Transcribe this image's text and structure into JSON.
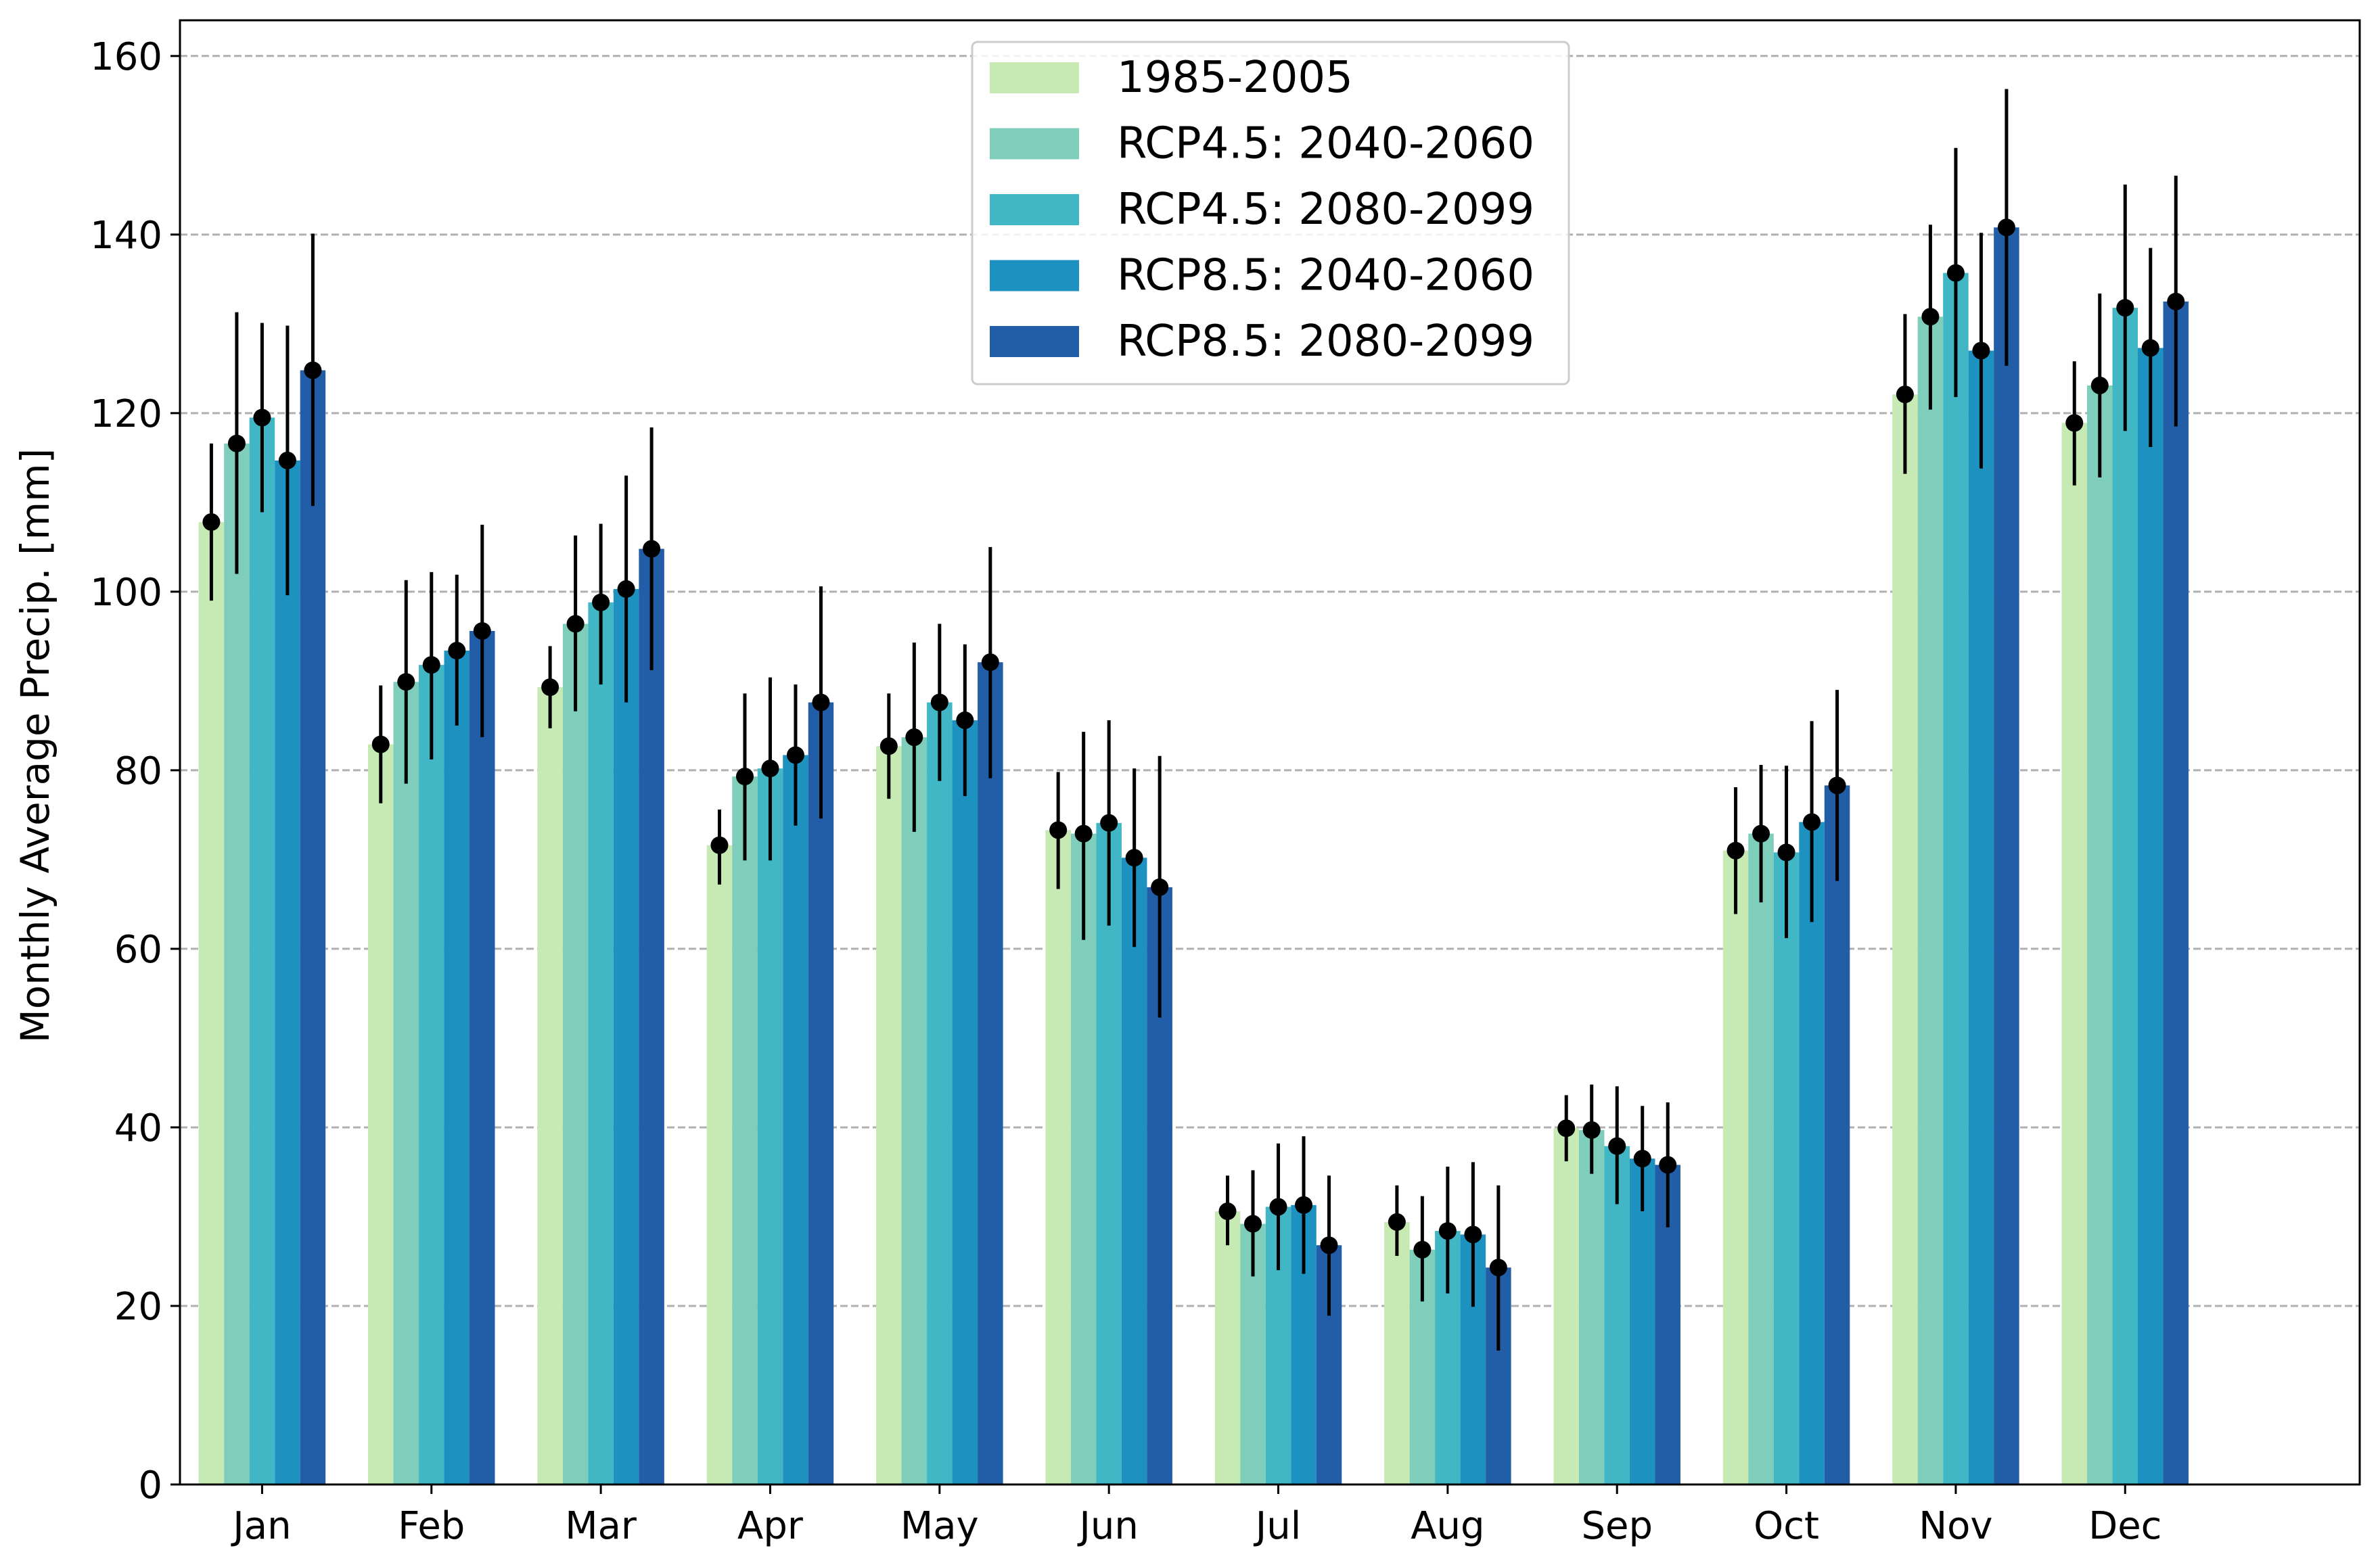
{
  "chart_data": {
    "type": "bar",
    "title": "",
    "xlabel": "",
    "ylabel": "Monthly Average Precip. [mm]",
    "ylim": [
      0,
      164
    ],
    "yticks": [
      0,
      20,
      40,
      60,
      80,
      100,
      120,
      140,
      160
    ],
    "grid": "y-dashed",
    "legend_position": "top-center",
    "categories": [
      "Jan",
      "Feb",
      "Mar",
      "Apr",
      "May",
      "Jun",
      "Jul",
      "Aug",
      "Sep",
      "Oct",
      "Nov",
      "Dec"
    ],
    "series": [
      {
        "name": "1985-2005",
        "color": "#c7e9b4",
        "values": [
          107.8,
          82.9,
          89.3,
          71.6,
          82.7,
          73.3,
          30.6,
          29.4,
          39.9,
          71.0,
          122.1,
          118.9
        ],
        "err_low": [
          99.0,
          76.3,
          84.7,
          67.2,
          76.8,
          66.7,
          26.8,
          25.6,
          36.2,
          63.9,
          113.2,
          111.9
        ],
        "err_high": [
          116.6,
          89.5,
          93.9,
          75.6,
          88.6,
          79.8,
          34.6,
          33.5,
          43.6,
          78.1,
          131.1,
          125.8
        ]
      },
      {
        "name": "RCP4.5: 2040-2060",
        "color": "#7fcdbb",
        "values": [
          116.6,
          89.9,
          96.4,
          79.3,
          83.7,
          72.9,
          29.2,
          26.3,
          39.7,
          72.9,
          130.8,
          123.1
        ],
        "err_low": [
          102.0,
          78.5,
          86.6,
          69.9,
          73.1,
          61.0,
          23.3,
          20.5,
          34.8,
          65.2,
          120.4,
          112.8
        ],
        "err_high": [
          131.3,
          101.3,
          106.3,
          88.6,
          94.3,
          84.3,
          35.2,
          32.3,
          44.8,
          80.6,
          141.1,
          133.4
        ]
      },
      {
        "name": "RCP4.5: 2080-2099",
        "color": "#41b6c4",
        "values": [
          119.5,
          91.8,
          98.8,
          80.2,
          87.6,
          74.1,
          31.1,
          28.4,
          37.9,
          70.8,
          135.7,
          131.8
        ],
        "err_low": [
          108.9,
          81.2,
          89.6,
          69.9,
          78.8,
          62.6,
          24.0,
          21.4,
          31.4,
          61.2,
          121.8,
          118.0
        ],
        "err_high": [
          130.1,
          102.2,
          107.6,
          90.4,
          96.4,
          85.6,
          38.2,
          35.6,
          44.6,
          80.5,
          149.7,
          145.6
        ]
      },
      {
        "name": "RCP8.5: 2040-2060",
        "color": "#1d91c0",
        "values": [
          114.7,
          93.4,
          100.3,
          81.7,
          85.6,
          70.2,
          31.3,
          28.0,
          36.5,
          74.2,
          127.0,
          127.3
        ],
        "err_low": [
          99.6,
          85.0,
          87.6,
          73.8,
          77.1,
          60.2,
          23.6,
          19.9,
          30.6,
          63.0,
          113.8,
          116.2
        ],
        "err_high": [
          129.8,
          101.9,
          113.0,
          89.6,
          94.1,
          80.2,
          39.0,
          36.1,
          42.4,
          85.5,
          140.2,
          138.5
        ]
      },
      {
        "name": "RCP8.5: 2080-2099",
        "color": "#225ea8",
        "values": [
          124.8,
          95.6,
          104.8,
          87.6,
          92.1,
          66.9,
          26.8,
          24.3,
          35.8,
          78.3,
          140.8,
          132.5
        ],
        "err_low": [
          109.6,
          83.7,
          91.2,
          74.6,
          79.1,
          52.3,
          18.9,
          15.0,
          28.8,
          67.6,
          125.3,
          118.5
        ],
        "err_high": [
          140.1,
          107.5,
          118.4,
          100.6,
          105.0,
          81.6,
          34.6,
          33.5,
          42.8,
          89.0,
          156.3,
          146.6
        ]
      }
    ]
  }
}
